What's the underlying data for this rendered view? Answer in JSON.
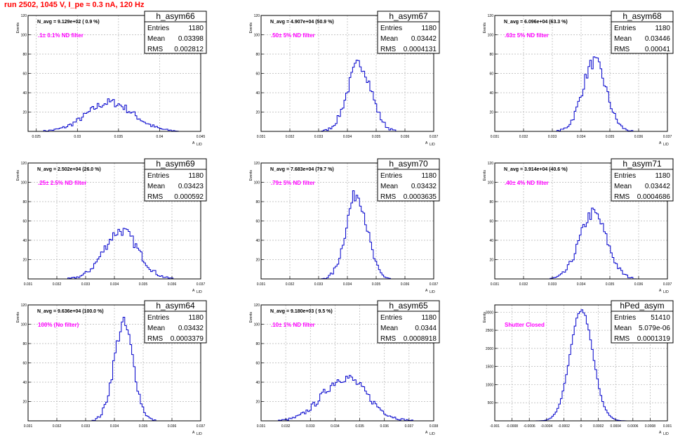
{
  "page_title": "run 2502,  1045 V, I_pe ≈ 0.3 nA, 120 Hz",
  "stats_labels": {
    "entries": "Entries",
    "mean": "Mean",
    "rms": "RMS"
  },
  "axis_titles": {
    "y": "Events",
    "x": "A",
    "x_sub": "L/D"
  },
  "colors": {
    "hist_line": "#0000cc",
    "grid": "#b4b4b4",
    "title": "#ff0000",
    "filter_text": "#ff00ff"
  },
  "chart_data": [
    {
      "type": "histogram",
      "name": "h_asym66",
      "navg": "N_avg = 9.129e+02 ( 0.9 %)",
      "filter": ".1± 0.1% ND filter",
      "entries": "1180",
      "mean": "0.03398",
      "rms": "0.002812",
      "xlim": [
        0.024,
        0.045
      ],
      "ylim": [
        0,
        120
      ],
      "xticks": [
        0.025,
        0.03,
        0.035,
        0.04,
        0.045
      ],
      "xtick_labels": [
        "0.025",
        "0.03",
        "0.035",
        "0.04",
        "0.045"
      ],
      "yticks": [
        20,
        40,
        60,
        80,
        100,
        120
      ],
      "ytick_labels": [
        "20",
        "40",
        "60",
        "80",
        "100",
        "120"
      ],
      "dist": {
        "mu": 0.03398,
        "sigma": 0.002812,
        "peak": 30
      }
    },
    {
      "type": "histogram",
      "name": "h_asym67",
      "navg": "N_avg = 4.907e+04 (50.9 %)",
      "filter": ".50± 5% ND filter",
      "entries": "1180",
      "mean": "0.03442",
      "rms": "0.0004131",
      "xlim": [
        0.031,
        0.037
      ],
      "ylim": [
        0,
        120
      ],
      "xticks": [
        0.031,
        0.032,
        0.033,
        0.034,
        0.035,
        0.036,
        0.037
      ],
      "xtick_labels": [
        "0.031",
        "0.032",
        "0.033",
        "0.034",
        "0.035",
        "0.036",
        "0.037"
      ],
      "yticks": [
        20,
        40,
        60,
        80,
        100,
        120
      ],
      "ytick_labels": [
        "20",
        "40",
        "60",
        "80",
        "100",
        "120"
      ],
      "dist": {
        "mu": 0.03442,
        "sigma": 0.0004131,
        "peak": 70
      }
    },
    {
      "type": "histogram",
      "name": "h_asym68",
      "navg": "N_avg = 6.096e+04 (63.3 %)",
      "filter": ".63± 5% ND filter",
      "entries": "1180",
      "mean": "0.03446",
      "rms": "0.00041",
      "xlim": [
        0.031,
        0.037
      ],
      "ylim": [
        0,
        120
      ],
      "xticks": [
        0.031,
        0.032,
        0.033,
        0.034,
        0.035,
        0.036,
        0.037
      ],
      "xtick_labels": [
        "0.031",
        "0.032",
        "0.033",
        "0.034",
        "0.035",
        "0.036",
        "0.037"
      ],
      "yticks": [
        20,
        40,
        60,
        80,
        100,
        120
      ],
      "ytick_labels": [
        "20",
        "40",
        "60",
        "80",
        "100",
        "120"
      ],
      "dist": {
        "mu": 0.03446,
        "sigma": 0.00041,
        "peak": 72
      }
    },
    {
      "type": "histogram",
      "name": "h_asym69",
      "navg": "N_avg = 2.502e+04 (26.0 %)",
      "filter": ".25± 2.5% ND filter",
      "entries": "1180",
      "mean": "0.03423",
      "rms": "0.000592",
      "xlim": [
        0.031,
        0.037
      ],
      "ylim": [
        0,
        120
      ],
      "xticks": [
        0.031,
        0.032,
        0.033,
        0.034,
        0.035,
        0.036,
        0.037
      ],
      "xtick_labels": [
        "0.031",
        "0.032",
        "0.033",
        "0.034",
        "0.035",
        "0.036",
        "0.037"
      ],
      "yticks": [
        20,
        40,
        60,
        80,
        100,
        120
      ],
      "ytick_labels": [
        "20",
        "40",
        "60",
        "80",
        "100",
        "120"
      ],
      "dist": {
        "mu": 0.03423,
        "sigma": 0.000592,
        "peak": 50
      }
    },
    {
      "type": "histogram",
      "name": "h_asym70",
      "navg": "N_avg = 7.683e+04 (79.7 %)",
      "filter": ".79± 5% ND filter",
      "entries": "1180",
      "mean": "0.03432",
      "rms": "0.0003635",
      "xlim": [
        0.031,
        0.037
      ],
      "ylim": [
        0,
        120
      ],
      "xticks": [
        0.031,
        0.032,
        0.033,
        0.034,
        0.035,
        0.036,
        0.037
      ],
      "xtick_labels": [
        "0.031",
        "0.032",
        "0.033",
        "0.034",
        "0.035",
        "0.036",
        "0.037"
      ],
      "yticks": [
        20,
        40,
        60,
        80,
        100,
        120
      ],
      "ytick_labels": [
        "20",
        "40",
        "60",
        "80",
        "100",
        "120"
      ],
      "dist": {
        "mu": 0.03432,
        "sigma": 0.0003635,
        "peak": 88
      }
    },
    {
      "type": "histogram",
      "name": "h_asym71",
      "navg": "N_avg = 3.914e+04 (40.6 %)",
      "filter": ".40± 4% ND filter",
      "entries": "1180",
      "mean": "0.03442",
      "rms": "0.0004686",
      "xlim": [
        0.031,
        0.037
      ],
      "ylim": [
        0,
        120
      ],
      "xticks": [
        0.031,
        0.032,
        0.033,
        0.034,
        0.035,
        0.036,
        0.037
      ],
      "xtick_labels": [
        "0.031",
        "0.032",
        "0.033",
        "0.034",
        "0.035",
        "0.036",
        "0.037"
      ],
      "yticks": [
        20,
        40,
        60,
        80,
        100,
        120
      ],
      "ytick_labels": [
        "20",
        "40",
        "60",
        "80",
        "100",
        "120"
      ],
      "dist": {
        "mu": 0.03442,
        "sigma": 0.0004686,
        "peak": 68
      }
    },
    {
      "type": "histogram",
      "name": "h_asym64",
      "navg": "N_avg = 9.636e+04 (100.0 %)",
      "filter": "100% (No filter)",
      "entries": "1180",
      "mean": "0.03432",
      "rms": "0.0003379",
      "xlim": [
        0.031,
        0.037
      ],
      "ylim": [
        0,
        120
      ],
      "xticks": [
        0.031,
        0.032,
        0.033,
        0.034,
        0.035,
        0.036,
        0.037
      ],
      "xtick_labels": [
        "0.031",
        "0.032",
        "0.033",
        "0.034",
        "0.035",
        "0.036",
        "0.037"
      ],
      "yticks": [
        20,
        40,
        60,
        80,
        100,
        120
      ],
      "ytick_labels": [
        "20",
        "40",
        "60",
        "80",
        "100",
        "120"
      ],
      "dist": {
        "mu": 0.03432,
        "sigma": 0.0003379,
        "peak": 100
      }
    },
    {
      "type": "histogram",
      "name": "h_asym65",
      "navg": "N_avg = 9.180e+03 ( 9.5 %)",
      "filter": ".10± 1% ND filter",
      "entries": "1180",
      "mean": "0.0344",
      "rms": "0.0008918",
      "xlim": [
        0.031,
        0.038
      ],
      "ylim": [
        0,
        120
      ],
      "xticks": [
        0.031,
        0.032,
        0.033,
        0.034,
        0.035,
        0.036,
        0.037,
        0.038
      ],
      "xtick_labels": [
        "0.031",
        "0.032",
        "0.033",
        "0.034",
        "0.035",
        "0.036",
        "0.037",
        "0.038"
      ],
      "yticks": [
        20,
        40,
        60,
        80,
        100,
        120
      ],
      "ytick_labels": [
        "20",
        "40",
        "60",
        "80",
        "100",
        "120"
      ],
      "dist": {
        "mu": 0.0344,
        "sigma": 0.0008918,
        "peak": 45
      }
    },
    {
      "type": "histogram",
      "name": "hPed_asym",
      "navg": "",
      "filter": "Shutter Closed",
      "entries": "51410",
      "mean": "5.079e-06",
      "rms": "0.0001319",
      "xlim": [
        -0.001,
        0.001
      ],
      "ylim": [
        0,
        3200
      ],
      "xticks": [
        -0.001,
        -0.0008,
        -0.0006,
        -0.0004,
        -0.0002,
        0,
        0.0002,
        0.0004,
        0.0006,
        0.0008,
        0.001
      ],
      "xtick_labels": [
        "-0.001",
        "-0.0008",
        "-0.0006",
        "-0.0004",
        "-0.0002",
        "0",
        "0.0002",
        "0.0004",
        "0.0006",
        "0.0008",
        "0.001"
      ],
      "yticks": [
        500,
        1000,
        1500,
        2000,
        2500,
        3000
      ],
      "ytick_labels": [
        "500",
        "1000",
        "1500",
        "2000",
        "2500",
        "3000"
      ],
      "dist": {
        "mu": 5.079e-06,
        "sigma": 0.0001319,
        "peak": 3050
      }
    }
  ]
}
